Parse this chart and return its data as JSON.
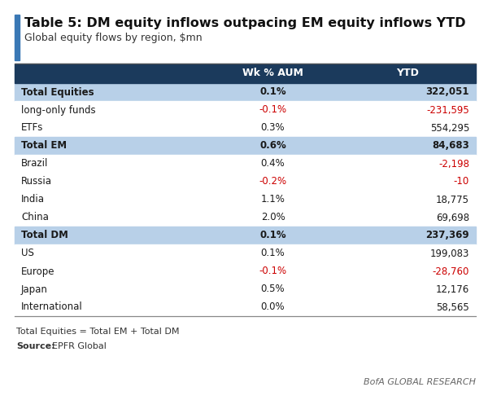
{
  "title": "Table 5: DM equity inflows outpacing EM equity inflows YTD",
  "subtitle": "Global equity flows by region, $mn",
  "header": [
    "",
    "Wk % AUM",
    "YTD"
  ],
  "rows": [
    {
      "label": "Total Equities",
      "wk": "0.1%",
      "ytd": "322,051",
      "bold": true,
      "bg": "#b8d0e8",
      "wk_red": false,
      "ytd_red": false
    },
    {
      "label": "long-only funds",
      "wk": "-0.1%",
      "ytd": "-231,595",
      "bold": false,
      "bg": "#ffffff",
      "wk_red": true,
      "ytd_red": true
    },
    {
      "label": "ETFs",
      "wk": "0.3%",
      "ytd": "554,295",
      "bold": false,
      "bg": "#ffffff",
      "wk_red": false,
      "ytd_red": false
    },
    {
      "label": "Total EM",
      "wk": "0.6%",
      "ytd": "84,683",
      "bold": true,
      "bg": "#b8d0e8",
      "wk_red": false,
      "ytd_red": false
    },
    {
      "label": "Brazil",
      "wk": "0.4%",
      "ytd": "-2,198",
      "bold": false,
      "bg": "#ffffff",
      "wk_red": false,
      "ytd_red": true
    },
    {
      "label": "Russia",
      "wk": "-0.2%",
      "ytd": "-10",
      "bold": false,
      "bg": "#ffffff",
      "wk_red": true,
      "ytd_red": true
    },
    {
      "label": "India",
      "wk": "1.1%",
      "ytd": "18,775",
      "bold": false,
      "bg": "#ffffff",
      "wk_red": false,
      "ytd_red": false
    },
    {
      "label": "China",
      "wk": "2.0%",
      "ytd": "69,698",
      "bold": false,
      "bg": "#ffffff",
      "wk_red": false,
      "ytd_red": false
    },
    {
      "label": "Total DM",
      "wk": "0.1%",
      "ytd": "237,369",
      "bold": true,
      "bg": "#b8d0e8",
      "wk_red": false,
      "ytd_red": false
    },
    {
      "label": "US",
      "wk": "0.1%",
      "ytd": "199,083",
      "bold": false,
      "bg": "#ffffff",
      "wk_red": false,
      "ytd_red": false
    },
    {
      "label": "Europe",
      "wk": "-0.1%",
      "ytd": "-28,760",
      "bold": false,
      "bg": "#ffffff",
      "wk_red": true,
      "ytd_red": true
    },
    {
      "label": "Japan",
      "wk": "0.5%",
      "ytd": "12,176",
      "bold": false,
      "bg": "#ffffff",
      "wk_red": false,
      "ytd_red": false
    },
    {
      "label": "International",
      "wk": "0.0%",
      "ytd": "58,565",
      "bold": false,
      "bg": "#ffffff",
      "wk_red": false,
      "ytd_red": false
    }
  ],
  "footer_line1": "Total Equities = Total EM + Total DM",
  "footer_line2_bold": "Source:",
  "footer_line2_normal": "EPFR Global",
  "branding": "BofA GLOBAL RESEARCH",
  "header_bg": "#1b3a5c",
  "header_fg": "#ffffff",
  "red_color": "#cc0000",
  "black_color": "#1a1a1a",
  "left_bar_color": "#3a78b5",
  "fig_bg": "#ffffff",
  "title_fontsize": 11.5,
  "subtitle_fontsize": 9,
  "header_fontsize": 9,
  "row_fontsize": 8.5,
  "footer_fontsize": 8,
  "brand_fontsize": 8
}
